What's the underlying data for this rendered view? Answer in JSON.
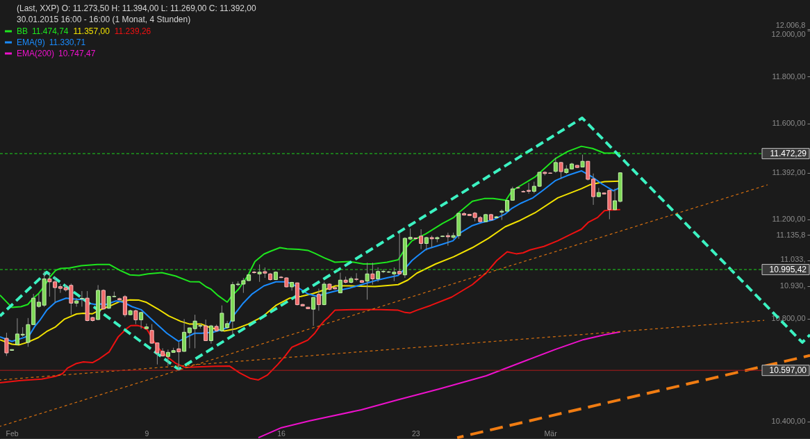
{
  "chart_data": {
    "type": "candlestick",
    "title": "(Last, XXP)  O: 11.273,50  H: 11.394,00  L: 11.269,00  C: 11.392,00",
    "subtitle": "30.01.2015 16:00 - 16:00 (1 Monat, 4 Stunden)",
    "x": [
      1.72,
      2.0,
      2.28,
      2.56,
      2.84,
      3.12,
      3.4,
      3.68,
      3.96,
      4.24,
      4.52,
      4.8,
      5.08,
      5.36,
      5.64,
      5.92,
      6.2,
      6.48,
      6.76,
      7.04,
      7.32,
      7.6,
      7.88,
      8.16,
      8.44,
      8.72,
      9.0,
      9.28,
      9.56,
      9.84,
      10.12,
      10.4,
      10.68,
      10.96,
      11.24,
      11.52,
      11.8,
      12.08,
      12.36,
      12.64,
      12.92,
      13.2,
      13.48,
      13.76,
      14.04,
      14.32,
      14.6,
      14.88,
      15.16,
      15.44,
      15.72,
      16.0,
      16.28,
      16.56,
      16.84,
      17.12,
      17.4,
      17.68,
      17.96,
      18.24,
      18.52,
      18.8,
      19.08,
      19.36,
      19.64,
      19.92,
      20.2,
      20.48,
      20.76,
      21.04,
      21.32,
      21.6,
      21.88,
      22.16,
      22.44,
      22.72,
      23.0,
      23.28,
      23.56,
      23.84,
      24.12,
      24.4,
      24.68,
      24.96,
      25.24,
      25.52,
      25.8,
      26.08,
      26.36,
      26.64,
      26.92,
      27.2,
      27.48,
      27.76,
      28.04,
      28.32,
      28.6,
      28.88,
      29.16,
      29.44,
      29.72,
      30.0,
      30.28,
      30.56,
      30.84,
      31.12,
      31.4,
      31.68,
      31.96,
      32.24,
      32.52,
      32.8,
      33.08,
      33.36,
      33.64
    ],
    "ohlc": [
      [
        10722,
        10744,
        10653,
        10665
      ],
      [
        10675,
        10679,
        10674,
        10678
      ],
      [
        10698,
        10801,
        10695,
        10739
      ],
      [
        10735,
        10766,
        10728,
        10738
      ],
      [
        10706,
        10802,
        10689,
        10776
      ],
      [
        10776,
        10898,
        10775,
        10881
      ],
      [
        10848,
        10899,
        10843,
        10865
      ],
      [
        10853,
        10988,
        10846,
        10958
      ],
      [
        10958,
        10981,
        10887,
        10946
      ],
      [
        10946,
        10967,
        10863,
        10923
      ],
      [
        10927,
        10937,
        10902,
        10920
      ],
      [
        10923,
        10935,
        10907,
        10914
      ],
      [
        10932,
        10939,
        10815,
        10861
      ],
      [
        10861,
        10881,
        10847,
        10870
      ],
      [
        10878,
        10909,
        10847,
        10880
      ],
      [
        10881,
        10909,
        10789,
        10792
      ],
      [
        10804,
        10807,
        10788,
        10792
      ],
      [
        10796,
        10933,
        10795,
        10912
      ],
      [
        10912,
        10916,
        10835,
        10838
      ],
      [
        10841,
        10890,
        10838,
        10888
      ],
      [
        10887,
        10907,
        10885,
        10888
      ],
      [
        10879,
        10883,
        10871,
        10874
      ],
      [
        10887,
        10893,
        10806,
        10815
      ],
      [
        10815,
        10835,
        10813,
        10831
      ],
      [
        10831,
        10835,
        10778,
        10795
      ],
      [
        10795,
        10827,
        10760,
        10824
      ],
      [
        10760,
        10780,
        10758,
        10767
      ],
      [
        10753,
        10778,
        10701,
        10703
      ],
      [
        10704,
        10706,
        10620,
        10665
      ],
      [
        10671,
        10683,
        10651,
        10653
      ],
      [
        10651,
        10678,
        10615,
        10667
      ],
      [
        10667,
        10685,
        10666,
        10674
      ],
      [
        10681,
        10707,
        10597,
        10669
      ],
      [
        10671,
        10798,
        10669,
        10746
      ],
      [
        10744,
        10764,
        10683,
        10763
      ],
      [
        10760,
        10815,
        10683,
        10790
      ],
      [
        10770,
        10780,
        10761,
        10772
      ],
      [
        10771,
        10796,
        10712,
        10713
      ],
      [
        10713,
        10775,
        10701,
        10771
      ],
      [
        10769,
        10776,
        10747,
        10752
      ],
      [
        10752,
        10852,
        10747,
        10821
      ],
      [
        10764,
        10791,
        10761,
        10780
      ],
      [
        10790,
        10946,
        10737,
        10935
      ],
      [
        10935,
        10948,
        10929,
        10937
      ],
      [
        10937,
        10962,
        10902,
        10951
      ],
      [
        10951,
        10976,
        10949,
        10974
      ],
      [
        10985,
        10990,
        10979,
        10983
      ],
      [
        10978,
        11016,
        10946,
        10985
      ],
      [
        10987,
        11004,
        10962,
        10981
      ],
      [
        10978,
        10982,
        10951,
        10955
      ],
      [
        10955,
        10988,
        10954,
        10985
      ],
      [
        10965,
        10969,
        10961,
        10963
      ],
      [
        10962,
        10964,
        10924,
        10926
      ],
      [
        10926,
        10946,
        10911,
        10944
      ],
      [
        10942,
        10943,
        10852,
        10855
      ],
      [
        10856,
        10858,
        10849,
        10850
      ],
      [
        10845,
        10846,
        10838,
        10839
      ],
      [
        10837,
        10885,
        10771,
        10884
      ],
      [
        10896,
        10919,
        10831,
        10855
      ],
      [
        10855,
        10946,
        10853,
        10937
      ],
      [
        10937,
        10940,
        10912,
        10916
      ],
      [
        10923,
        10926,
        10915,
        10918
      ],
      [
        10902,
        10983,
        10901,
        10953
      ],
      [
        10953,
        10967,
        10940,
        10944
      ],
      [
        10944,
        10967,
        10940,
        10959
      ],
      [
        10957,
        10981,
        10949,
        10956
      ],
      [
        10951,
        10953,
        10942,
        10944
      ],
      [
        10949,
        11023,
        10875,
        10978
      ],
      [
        10978,
        11023,
        10935,
        10958
      ],
      [
        10958,
        11004,
        10946,
        10988
      ],
      [
        10987,
        10997,
        10981,
        10988
      ],
      [
        10985,
        10990,
        10982,
        10986
      ],
      [
        10978,
        11004,
        10949,
        10985
      ],
      [
        10988,
        11145,
        10976,
        10978
      ],
      [
        10974,
        11126,
        10962,
        11122
      ],
      [
        11119,
        11162,
        11114,
        11126
      ],
      [
        11123,
        11125,
        11118,
        11121
      ],
      [
        11131,
        11159,
        11078,
        11101
      ],
      [
        11101,
        11128,
        11073,
        11125
      ],
      [
        11125,
        11133,
        11084,
        11120
      ],
      [
        11120,
        11129,
        11106,
        11125
      ],
      [
        11129,
        11133,
        11127,
        11131
      ],
      [
        11133,
        11145,
        11092,
        11128
      ],
      [
        11126,
        11145,
        11120,
        11133
      ],
      [
        11133,
        11225,
        11120,
        11224
      ],
      [
        11223,
        11230,
        11215,
        11217
      ],
      [
        11220,
        11222,
        11213,
        11215
      ],
      [
        11225,
        11230,
        11191,
        11207
      ],
      [
        11207,
        11213,
        11188,
        11190
      ],
      [
        11190,
        11222,
        11188,
        11219
      ],
      [
        11219,
        11222,
        11195,
        11197
      ],
      [
        11206,
        11213,
        11205,
        11210
      ],
      [
        11229,
        11240,
        11197,
        11233
      ],
      [
        11233,
        11281,
        11231,
        11277
      ],
      [
        11278,
        11334,
        11276,
        11325
      ],
      [
        11330,
        11334,
        11325,
        11329
      ],
      [
        11314,
        11319,
        11311,
        11313
      ],
      [
        11319,
        11350,
        11305,
        11315
      ],
      [
        11315,
        11355,
        11307,
        11336
      ],
      [
        11336,
        11395,
        11334,
        11394
      ],
      [
        11394,
        11398,
        11381,
        11389
      ],
      [
        11391,
        11393,
        11388,
        11390
      ],
      [
        11398,
        11455,
        11392,
        11435
      ],
      [
        11435,
        11437,
        11367,
        11397
      ],
      [
        11393,
        11424,
        11387,
        11408
      ],
      [
        11408,
        11434,
        11406,
        11429
      ],
      [
        11423,
        11424,
        11412,
        11414
      ],
      [
        11416,
        11468,
        11415,
        11440
      ],
      [
        11440,
        11441,
        11360,
        11365
      ],
      [
        11366,
        11389,
        11259,
        11293
      ],
      [
        11293,
        11329,
        11291,
        11310
      ],
      [
        11308,
        11309,
        11302,
        11304
      ],
      [
        11319,
        11321,
        11200,
        11240
      ],
      [
        11239,
        11326,
        11238,
        11276
      ],
      [
        11273.5,
        11394,
        11269,
        11392
      ]
    ],
    "xlim": [
      1.38,
      43.51
    ],
    "xticks": [
      {
        "value": 2,
        "label": "Feb"
      },
      9,
      16,
      23,
      {
        "value": 30,
        "label": "Mär"
      }
    ],
    "ylim": [
      10334,
      12136
    ],
    "yticks": [
      {
        "value": 10400,
        "label": "10.400,00"
      },
      {
        "value": 10800,
        "label": "10.800,00"
      },
      {
        "value": 10930,
        "label": "10.930,"
      },
      {
        "value": 11033,
        "label": "11.033,"
      },
      {
        "value": 11135.8,
        "label": "11.135,8"
      },
      {
        "value": 11200,
        "label": "11.200,00"
      },
      {
        "value": 11392,
        "label": "11.392,00"
      },
      {
        "value": 11600,
        "label": "11.600,00"
      },
      {
        "value": 11800,
        "label": "11.800,00"
      },
      {
        "value": 12000,
        "label": "12.000,00"
      },
      {
        "value": 12006.8,
        "label": "12.006,8"
      }
    ],
    "log": true,
    "legend": "top left",
    "series": [
      {
        "name": "BB",
        "type": "line",
        "color": "#1ee61e",
        "x": [
          1.38,
          2.0,
          2.47,
          2.83,
          3.08,
          3.37,
          3.66,
          3.99,
          4.27,
          4.53,
          5.0,
          5.61,
          6.44,
          7.06,
          7.63,
          8.14,
          8.61,
          9.08,
          9.8,
          10.53,
          11.25,
          11.75,
          12.11,
          12.33,
          12.69,
          13.2,
          13.42,
          13.78,
          14.28,
          14.64,
          15.11,
          15.47,
          15.94,
          16.31,
          16.92,
          17.39,
          17.75,
          18.26,
          18.8,
          19.56,
          20.28,
          20.79,
          21.51,
          22.09,
          22.45,
          22.81,
          23.53,
          24.4,
          24.98,
          25.23,
          25.95,
          26.57,
          27.03,
          27.69,
          28.01,
          28.59,
          29.2,
          29.67,
          30.28,
          30.9,
          31.62,
          32.2,
          32.82,
          33.64
        ],
        "values": [
          10893,
          10844,
          10847,
          10856,
          10879,
          10898,
          10926,
          10967,
          10992,
          11000,
          11002,
          11011,
          11016,
          11016,
          10992,
          10974,
          10972,
          10978,
          10983,
          10969,
          10947,
          10946,
          10926,
          10918,
          10893,
          10865,
          10888,
          10916,
          10972,
          11028,
          11058,
          11070,
          11084,
          11079,
          11077,
          11073,
          11061,
          11042,
          11025,
          11028,
          11018,
          11018,
          11025,
          11035,
          11079,
          11112,
          11140,
          11183,
          11207,
          11226,
          11274,
          11285,
          11285,
          11278,
          11317,
          11345,
          11374,
          11408,
          11452,
          11481,
          11503,
          11494,
          11474,
          11474.74
        ]
      },
      {
        "type": "line",
        "color": "#f2e200",
        "x": [
          1.38,
          2.0,
          2.36,
          2.83,
          3.37,
          3.81,
          4.27,
          4.74,
          5.36,
          5.72,
          6.19,
          6.7,
          7.17,
          7.63,
          8.14,
          8.61,
          8.97,
          9.59,
          10.16,
          10.78,
          11.25,
          11.86,
          12.33,
          13.05,
          13.67,
          14.28,
          15.01,
          15.73,
          16.45,
          17.03,
          17.64,
          18.26,
          18.83,
          19.56,
          20.89,
          22.09,
          22.59,
          23.06,
          24.04,
          24.98,
          25.95,
          26.78,
          27.65,
          28.37,
          29.2,
          30.39,
          31.62,
          32.09,
          32.82,
          33.64
        ],
        "values": [
          10716,
          10699,
          10696,
          10707,
          10725,
          10749,
          10767,
          10798,
          10818,
          10821,
          10819,
          10838,
          10852,
          10868,
          10874,
          10873,
          10865,
          10838,
          10810,
          10789,
          10778,
          10778,
          10764,
          10751,
          10760,
          10778,
          10806,
          10852,
          10881,
          10888,
          10899,
          10914,
          10930,
          10930,
          10927,
          10935,
          10953,
          10981,
          11018,
          11047,
          11084,
          11122,
          11169,
          11193,
          11226,
          11288,
          11326,
          11343,
          11355,
          11357
        ]
      },
      {
        "type": "line",
        "color": "#ee1111",
        "x": [
          1.38,
          2.47,
          3.55,
          4.27,
          4.63,
          4.89,
          5.36,
          5.72,
          6.19,
          6.55,
          7.06,
          7.53,
          7.96,
          8.18,
          8.5,
          8.72,
          9.04,
          9.42,
          9.69,
          10.06,
          10.53,
          11.03,
          11.61,
          12.58,
          13.31,
          13.85,
          14.39,
          14.82,
          15.29,
          15.83,
          16.2,
          16.56,
          16.92,
          17.39,
          17.75,
          18.0,
          18.26,
          18.47,
          18.8,
          19.7,
          20.89,
          22.09,
          22.45,
          22.7,
          23.06,
          23.78,
          24.87,
          25.95,
          26.67,
          27.22,
          27.76,
          28.23,
          28.59,
          28.95,
          29.67,
          30.39,
          31.01,
          31.62,
          31.99,
          32.46,
          32.82,
          33.18,
          33.64
        ],
        "values": [
          10549,
          10558,
          10563,
          10574,
          10584,
          10606,
          10624,
          10630,
          10627,
          10642,
          10669,
          10728,
          10760,
          10772,
          10773,
          10769,
          10755,
          10706,
          10678,
          10651,
          10624,
          10608,
          10610,
          10613,
          10614,
          10587,
          10566,
          10560,
          10579,
          10620,
          10652,
          10687,
          10699,
          10715,
          10742,
          10769,
          10792,
          10806,
          10833,
          10835,
          10836,
          10833,
          10824,
          10822,
          10833,
          10852,
          10885,
          10935,
          10982,
          11032,
          11067,
          11059,
          11063,
          11075,
          11089,
          11112,
          11136,
          11159,
          11188,
          11207,
          11235,
          11238,
          11239.26
        ]
      },
      {
        "name": "EMA(9)",
        "type": "line",
        "color": "#1a8cff",
        "x": [
          1.38,
          2.0,
          2.58,
          2.9,
          3.19,
          3.48,
          3.81,
          4.27,
          4.82,
          5.36,
          5.72,
          5.97,
          6.33,
          6.55,
          6.91,
          7.42,
          7.78,
          8.25,
          8.72,
          9.08,
          9.59,
          10.06,
          10.67,
          11.03,
          11.5,
          11.86,
          12.47,
          12.69,
          13.2,
          13.56,
          14.03,
          14.5,
          15.11,
          15.73,
          16.2,
          16.56,
          16.92,
          17.39,
          17.9,
          18.26,
          18.83,
          19.56,
          20.28,
          21.0,
          21.51,
          22.09,
          22.45,
          22.81,
          23.06,
          23.53,
          24.4,
          24.94,
          25.34,
          25.95,
          26.42,
          27.03,
          27.65,
          28.01,
          28.48,
          29.1,
          29.67,
          30.28,
          30.9,
          31.62,
          32.2,
          32.7,
          33.28,
          33.64
        ],
        "values": [
          10728,
          10710,
          10724,
          10733,
          10769,
          10796,
          10833,
          10865,
          10881,
          10877,
          10875,
          10861,
          10856,
          10858,
          10856,
          10870,
          10865,
          10847,
          10835,
          10810,
          10774,
          10742,
          10710,
          10724,
          10742,
          10742,
          10746,
          10751,
          10764,
          10815,
          10861,
          10898,
          10930,
          10946,
          10946,
          10939,
          10921,
          10898,
          10888,
          10898,
          10909,
          10921,
          10937,
          10953,
          10962,
          10972,
          11000,
          11032,
          11048,
          11077,
          11098,
          11112,
          11145,
          11174,
          11186,
          11197,
          11221,
          11245,
          11266,
          11288,
          11322,
          11360,
          11381,
          11400,
          11374,
          11345,
          11317,
          11330.71
        ]
      },
      {
        "name": "EMA(200)",
        "type": "line",
        "color": "#ee11cc",
        "x": [
          14.82,
          16.02,
          17.5,
          20.17,
          22.05,
          24.22,
          26.67,
          28.84,
          30.28,
          31.73,
          32.82,
          33.64
        ],
        "values": [
          10339,
          10377,
          10403,
          10445,
          10483,
          10525,
          10576,
          10638,
          10679,
          10717,
          10736,
          10747.47
        ]
      },
      {
        "type": "line",
        "color": "#3cf2c2",
        "line_style": "dashed",
        "x": [
          1.38,
          3.81,
          10.67,
          31.66,
          43.11,
          43.51
        ],
        "values": [
          10810,
          10985,
          10601,
          11623,
          10706,
          10736
        ]
      },
      {
        "type": "line",
        "color": "#d9700f",
        "line_style": "dotted",
        "x": [
          1.38,
          41.31
        ],
        "values": [
          10382,
          11342
        ]
      },
      {
        "type": "line",
        "color": "#d9700f",
        "line_style": "dotted",
        "x": [
          1.38,
          41.13
        ],
        "values": [
          10560,
          10793
        ]
      },
      {
        "type": "line",
        "color": "#f07c12",
        "line_style": "dashed",
        "x": [
          25.16,
          43.51
        ],
        "values": [
          10339,
          10655
        ]
      }
    ],
    "ref_lines": [
      {
        "axis": "y",
        "value": 11472.29,
        "label": "11.472,29",
        "color": "#1ed81e",
        "line_style": "dashed"
      },
      {
        "axis": "y",
        "value": 10995.42,
        "label": "10.995,42",
        "color": "#1ed81e",
        "line_style": "dashed"
      },
      {
        "axis": "y",
        "value": 10597,
        "label": "10.597,00",
        "color": "#b01b1b",
        "line_style": "solid"
      }
    ],
    "annotations": [
      "11.474,74",
      "11.357,00",
      "11.239,26",
      "11.330,71",
      "10.747,47"
    ]
  }
}
